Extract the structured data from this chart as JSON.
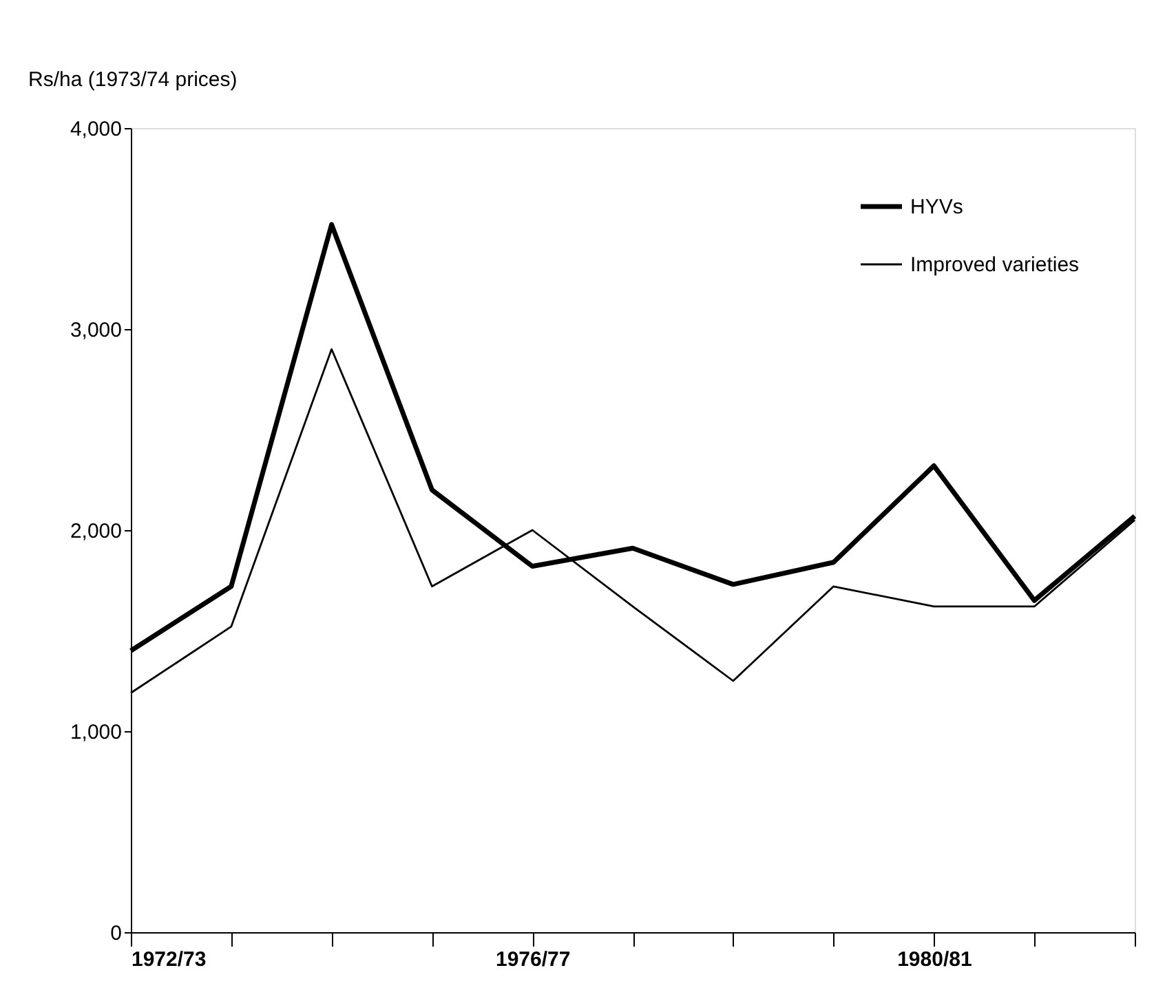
{
  "chart_data": {
    "type": "line",
    "ylabel": "Rs/ha (1973/74 prices)",
    "categories": [
      "1972/73",
      null,
      null,
      null,
      "1976/77",
      null,
      null,
      null,
      "1980/81",
      null,
      null
    ],
    "series": [
      {
        "name": "HYVs",
        "color": "#000000",
        "values": [
          1400,
          1720,
          3520,
          2200,
          1820,
          1910,
          1730,
          1840,
          2320,
          1650,
          2070
        ]
      },
      {
        "name": "Improved varieties",
        "color": "#000000",
        "values": [
          1190,
          1520,
          2900,
          1720,
          2000,
          1620,
          1250,
          1720,
          1620,
          1620,
          2050
        ]
      }
    ],
    "ylim": [
      0,
      4000
    ],
    "yticks": [
      0,
      {
        "value": 1000,
        "label": "1,000"
      },
      {
        "value": 2000,
        "label": "2,000"
      },
      {
        "value": 3000,
        "label": "3,000"
      },
      {
        "value": 4000,
        "label": "4,000"
      }
    ],
    "grid": false,
    "legend": "top right",
    "marker": "none",
    "line_style": "solid"
  }
}
